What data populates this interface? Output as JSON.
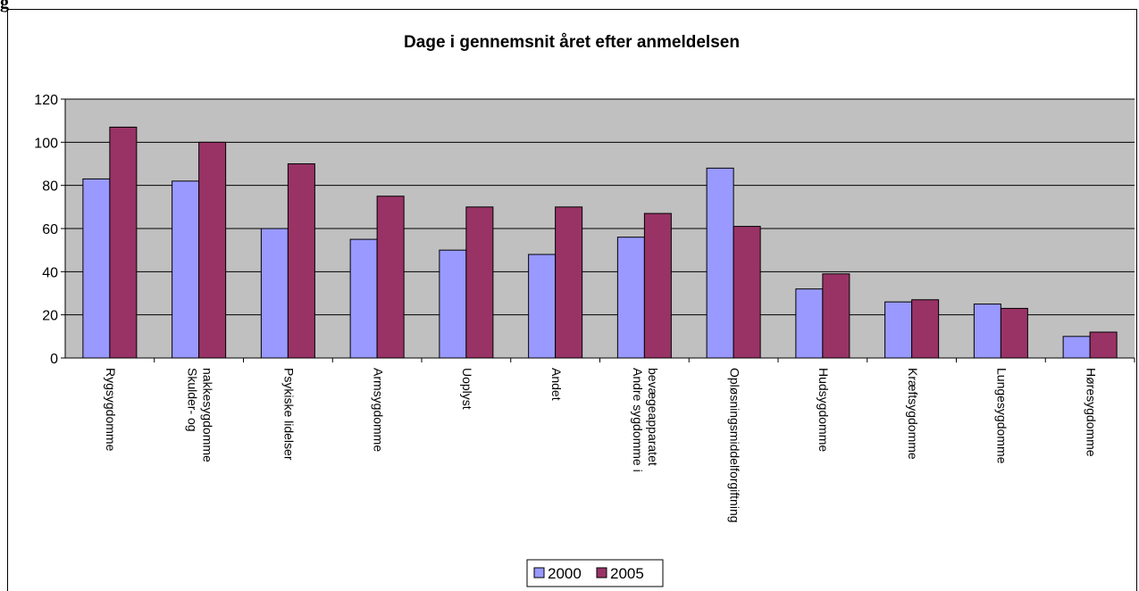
{
  "figure_label": "g",
  "chart_data": {
    "type": "bar",
    "title": "Dage i gennemsnit året efter anmeldelsen",
    "xlabel": "",
    "ylabel": "",
    "ylim": [
      0,
      120
    ],
    "yticks": [
      0,
      20,
      40,
      60,
      80,
      100,
      120
    ],
    "grid": true,
    "legend_position": "bottom",
    "categories": [
      [
        "Rygsygdomme"
      ],
      [
        "Skulder- og",
        "nakkesygdomme"
      ],
      [
        "Psykiske lidelser"
      ],
      [
        "Armsygdomme"
      ],
      [
        "Uoplyst"
      ],
      [
        "Andet"
      ],
      [
        "Andre sygdomme i",
        "bevægeapparatet"
      ],
      [
        "Opløsningsmiddelforgiftning"
      ],
      [
        "Hudsygdomme"
      ],
      [
        "Kræftsygdomme"
      ],
      [
        "Lungesygdomme"
      ],
      [
        "Høresygdomme"
      ]
    ],
    "series": [
      {
        "name": "2000",
        "color": "#9999ff",
        "values": [
          83,
          82,
          60,
          55,
          50,
          48,
          56,
          88,
          32,
          26,
          25,
          10
        ]
      },
      {
        "name": "2005",
        "color": "#993366",
        "values": [
          107,
          100,
          90,
          75,
          70,
          70,
          67,
          61,
          39,
          27,
          23,
          12
        ]
      }
    ],
    "plot_background": "#c0c0c0"
  }
}
